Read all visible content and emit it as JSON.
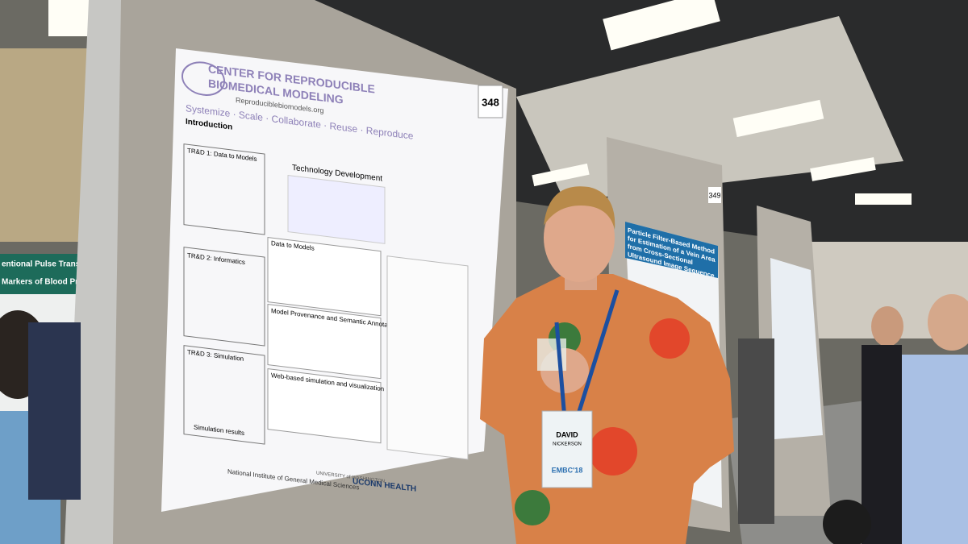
{
  "poster": {
    "number": "348",
    "title_line1": "CENTER FOR REPRODUCIBLE",
    "title_line2": "BIOMEDICAL MODELING",
    "url": "Reproduciblebiomodels.org",
    "tagline": "Systemize · Scale · Collaborate · Reuse · Reproduce",
    "sections": [
      "Introduction",
      "TR&D 1: Data to Models",
      "Technology Development",
      "TR&D 2: Informatics",
      "Data to Models",
      "Model Provenance and Semantic Annotation",
      "TR&D 3: Simulation",
      "Web-based simulation and visualization",
      "Simulation results"
    ],
    "funder": "National Institute of General Medical Sciences",
    "partners": [
      "UNIVERSITY of WASHINGTON",
      "UCONN HEALTH"
    ]
  },
  "badge": {
    "name": "DAVID",
    "surname": "NICKERSON",
    "event": "EMBC'18"
  },
  "neighbor_poster": {
    "number": "349",
    "title": "Particle Filter-Based Method for Estimation of a Vein Area from Cross-Sectional Ultrasound Image Sequence"
  },
  "left_poster": {
    "title": "entional Pulse Transit",
    "subtitle": "Markers of Blood Pres"
  }
}
